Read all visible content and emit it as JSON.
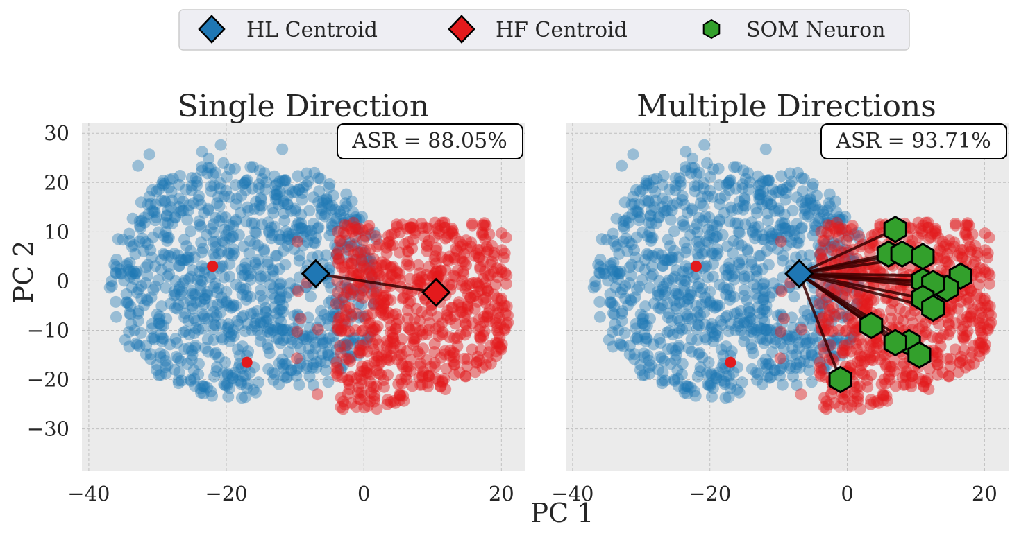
{
  "legend": {
    "items": [
      {
        "label": "HL Centroid",
        "marker": "diamond",
        "color": "#1f77b4"
      },
      {
        "label": "HF Centroid",
        "marker": "diamond",
        "color": "#e31a1c"
      },
      {
        "label": "SOM Neuron",
        "marker": "hexagon",
        "color": "#33a02c"
      }
    ],
    "placement": "top-center"
  },
  "axes": {
    "xlabel": "PC 1",
    "ylabel": "PC 2",
    "xlim": [
      -41,
      23.5
    ],
    "ylim": [
      -38.5,
      32
    ],
    "xticks": [
      -40,
      -20,
      0,
      20
    ],
    "yticks": [
      30,
      20,
      10,
      0,
      -10,
      -20,
      -30
    ],
    "xtick_labels": [
      "−40",
      "−20",
      "0",
      "20"
    ],
    "ytick_labels": [
      "30",
      "20",
      "10",
      "0",
      "−10",
      "−20",
      "−30"
    ]
  },
  "colors": {
    "hl": "#1f77b4",
    "hf": "#e31a1c",
    "som": "#33a02c",
    "panel_bg": "#ebebeb",
    "grid": "#c0c0c0",
    "text": "#262626"
  },
  "chart_data": [
    {
      "type": "scatter",
      "title": "Single Direction",
      "annotation": "ASR = 88.05%",
      "hl_centroid": [
        -7,
        1.5
      ],
      "hf_centroid": [
        10.5,
        -2.3
      ],
      "directions": [
        [
          10.5,
          -2.3
        ]
      ],
      "outliers": [
        [
          -22,
          3
        ],
        [
          -17,
          -16.5
        ]
      ]
    },
    {
      "type": "scatter",
      "title": "Multiple Directions",
      "annotation": "ASR = 93.71%",
      "hl_centroid": [
        -7,
        1.5
      ],
      "som_neurons": [
        [
          7,
          10.5
        ],
        [
          6,
          5.5
        ],
        [
          8,
          5.5
        ],
        [
          11,
          5
        ],
        [
          16.5,
          1
        ],
        [
          11,
          0
        ],
        [
          14.5,
          -1.5
        ],
        [
          12.5,
          -0.5
        ],
        [
          11,
          -3.5
        ],
        [
          12.5,
          -5.5
        ],
        [
          3.5,
          -9
        ],
        [
          9,
          -12.5
        ],
        [
          7,
          -12.5
        ],
        [
          10.5,
          -15
        ],
        [
          -1,
          -20
        ]
      ],
      "outliers": [
        [
          -22,
          3
        ],
        [
          -17,
          -16.5
        ]
      ]
    }
  ]
}
